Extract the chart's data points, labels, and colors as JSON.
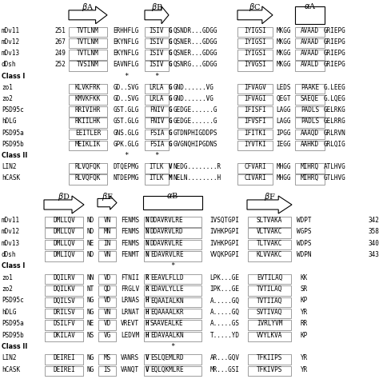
{
  "top_rows": [
    {
      "label": "mDv11",
      "num": "251",
      "c0": "TVTLNM",
      "c1": "ERHHFLG",
      "c2": "ISIV",
      "c3": "GQSNDR...GDGG",
      "c4": "IYIGSI",
      "c5": "MKGG",
      "c6": "AVAAD",
      "c7": "GRIEPG"
    },
    {
      "label": "mDv12",
      "num": "267",
      "c0": "TVTLNM",
      "c1": "EKYNFLG",
      "c2": "ISIV",
      "c3": "GQSNER...GDGG",
      "c4": "IYIGSI",
      "c5": "MKGG",
      "c6": "AVAAD",
      "c7": "GRIEPG"
    },
    {
      "label": "mDv13",
      "num": "249",
      "c0": "TVTLNM",
      "c1": "EKYNFLG",
      "c2": "ISIV",
      "c3": "GQSNER...GDGG",
      "c4": "IYIGSI",
      "c5": "MKGG",
      "c6": "AVAAD",
      "c7": "GRIEPG"
    },
    {
      "label": "dDsh",
      "num": "252",
      "c0": "TVSINM",
      "c1": "EAVNFLG",
      "c2": "ISIV",
      "c3": "GQSNRG...GDGG",
      "c4": "IYVGSI",
      "c5": "MKGG",
      "c6": "AVALD",
      "c7": "GRIEPG"
    },
    {
      "label": "Class I",
      "num": "",
      "c0": "",
      "c1": "*",
      "c2": "*",
      "c3": "",
      "c4": "",
      "c5": "",
      "c6": "",
      "c7": ""
    },
    {
      "label": "zo1",
      "num": "",
      "c0": "KLVKFRK",
      "c1": "GD..SVG",
      "c2": "LRLA",
      "c3": "GGND......VG",
      "c4": "IFVAGV",
      "c5": "LEDS",
      "c6": "PAAKE",
      "c7": "G.LEEG"
    },
    {
      "label": "zo2",
      "num": "",
      "c0": "KMVKFKK",
      "c1": "GD..SVG",
      "c2": "LRLA",
      "c3": "GGND......VG",
      "c4": "IFVAGI",
      "c5": "QEGT",
      "c6": "SAEQE",
      "c7": "G.LQEG"
    },
    {
      "label": "PSD95c",
      "num": "",
      "c0": "RRIVIHR",
      "c1": "GST.GLG",
      "c2": "FNIV",
      "c3": "GGEDGE......G",
      "c4": "IFISFI",
      "c5": "LAGG",
      "c6": "PADLS",
      "c7": "GELRKG"
    },
    {
      "label": "hDLG",
      "num": "",
      "c0": "RKIILHK",
      "c1": "GST.GLG",
      "c2": "FNIV",
      "c3": "GGEDGE......G",
      "c4": "IFVSFI",
      "c5": "LAGG",
      "c6": "PADLS",
      "c7": "GELRRG"
    },
    {
      "label": "PSD95a",
      "num": "",
      "c0": "EEITLER",
      "c1": "GNS.GLG",
      "c2": "FSIA",
      "c3": "GGTDNPHIGDDPS",
      "c4": "IFITKI",
      "c5": "IPGG",
      "c6": "AAAQD",
      "c7": "GRLRVN"
    },
    {
      "label": "PSD95b",
      "num": "",
      "c0": "MEIKLIK",
      "c1": "GPK.GLG",
      "c2": "FSIA",
      "c3": "GGVGNQHIPGDNS",
      "c4": "IYVTKI",
      "c5": "IEGG",
      "c6": "AAHKD",
      "c7": "GRLQIG"
    },
    {
      "label": "Class II",
      "num": "",
      "c0": "",
      "c1": "*",
      "c2": "*",
      "c3": "",
      "c4": "",
      "c5": "",
      "c6": "",
      "c7": ""
    },
    {
      "label": "LIN2",
      "num": "",
      "c0": "RLVQFQK",
      "c1": "DTQEPMG",
      "c2": "ITLK",
      "c3": "VNEDG........R",
      "c4": "CFVARI",
      "c5": "MHGG",
      "c6": "MIHRQ",
      "c7": "ATLHVG"
    },
    {
      "label": "hCASK",
      "num": "",
      "c0": "RLVQFQK",
      "c1": "NTDEPMG",
      "c2": "ITLK",
      "c3": "MNELN........H",
      "c4": "CIVARI",
      "c5": "MHGG",
      "c6": "MIHRQ",
      "c7": "GTLHVG"
    }
  ],
  "bot_rows": [
    {
      "label": "mDv11",
      "num": "342",
      "c0": "DMLLQV",
      "c1": "ND",
      "c2": "VN",
      "c3": "FENMS",
      "c4": "NDDAVRVLRE",
      "c5": "IVSQTGPI",
      "c6": "SLTVAKA",
      "c7": "WDPT"
    },
    {
      "label": "mDv12",
      "num": "358",
      "c0": "DMLLQV",
      "c1": "ND",
      "c2": "MN",
      "c3": "FENMS",
      "c4": "NDDAVRVLRD",
      "c5": "IVHKPGPI",
      "c6": "VLTVAKC",
      "c7": "WGPS"
    },
    {
      "label": "mDv13",
      "num": "340",
      "c0": "DMLLQV",
      "c1": "NE",
      "c2": "IN",
      "c3": "FENMS",
      "c4": "NDDAVRVLRE",
      "c5": "IVHKPGPI",
      "c6": "TLTVAKC",
      "c7": "WDPS"
    },
    {
      "label": "dDsh",
      "num": "343",
      "c0": "DMLIQV",
      "c1": "ND",
      "c2": "VN",
      "c3": "FENMT",
      "c4": "NEDAVRVLRE",
      "c5": "VVQKPGPI",
      "c6": "KLVVAKC",
      "c7": "WDPN"
    },
    {
      "label": "Class I",
      "num": "",
      "c0": "",
      "c1": "",
      "c2": "",
      "c3": "",
      "c4": "*",
      "c5": "",
      "c6": "",
      "c7": ""
    },
    {
      "label": "zo1",
      "num": "",
      "c0": "DQILRV",
      "c1": "NN",
      "c2": "VD",
      "c3": "FTNII",
      "c4": "REEAVLFLLD",
      "c5": "LPK...GE",
      "c6": "EVTILAQ",
      "c7": "KK"
    },
    {
      "label": "zo2",
      "num": "",
      "c0": "DQILKV",
      "c1": "NT",
      "c2": "QD",
      "c3": "FRGLV",
      "c4": "REDAVLYLLE",
      "c5": "IPK...GE",
      "c6": "TVTILAQ",
      "c7": "SR"
    },
    {
      "label": "PSD95c",
      "num": "",
      "c0": "DQILSV",
      "c1": "NG",
      "c2": "VD",
      "c3": "LRNAS",
      "c4": "HEQAAIALKN",
      "c5": "A.....GQ",
      "c6": "TVTIIAQ",
      "c7": "KP"
    },
    {
      "label": "hDLG",
      "num": "",
      "c0": "DRILSV",
      "c1": "NG",
      "c2": "VN",
      "c3": "LRNAT",
      "c4": "HEQAAAALKR",
      "c5": "A.....GQ",
      "c6": "SVTIVAQ",
      "c7": "YR"
    },
    {
      "label": "PSD95a",
      "num": "",
      "c0": "DSILFV",
      "c1": "NE",
      "c2": "VD",
      "c3": "VREVT",
      "c4": "HSAAVEALKE",
      "c5": "A.....GS",
      "c6": "IVRLYVM",
      "c7": "RR"
    },
    {
      "label": "PSD95b",
      "num": "",
      "c0": "DKILAV",
      "c1": "NS",
      "c2": "VG",
      "c3": "LEDVM",
      "c4": "HEDAVAALKN",
      "c5": "T.....YD",
      "c6": "VVYLKVA",
      "c7": "KP"
    },
    {
      "label": "Class II",
      "num": "",
      "c0": "",
      "c1": "",
      "c2": "",
      "c3": "",
      "c4": "*",
      "c5": "",
      "c6": "",
      "c7": ""
    },
    {
      "label": "LIN2",
      "num": "",
      "c0": "DEIREI",
      "c1": "NG",
      "c2": "MS",
      "c3": "VANRS",
      "c4": "VESLQEMLRD",
      "c5": "AR...GQV",
      "c6": "TFKIIPS",
      "c7": "YR"
    },
    {
      "label": "hCASK",
      "num": "",
      "c0": "DEIREI",
      "c1": "NG",
      "c2": "IS",
      "c3": "VANQT",
      "c4": "VEQLQKMLRE",
      "c5": "MR...GSI",
      "c6": "TFKIVPS",
      "c7": "YR"
    }
  ]
}
